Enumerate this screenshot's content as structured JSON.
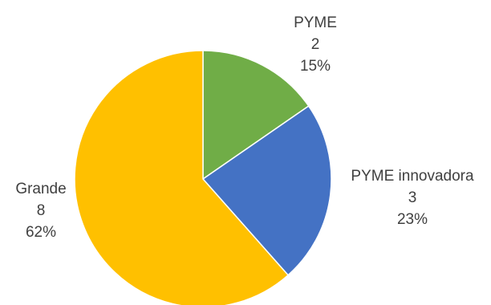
{
  "chart_data": {
    "type": "pie",
    "title": "",
    "slices": [
      {
        "label": "PYME",
        "value": 2,
        "percent": "15%",
        "color": "#70AD47"
      },
      {
        "label": "PYME innovadora",
        "value": 3,
        "percent": "23%",
        "color": "#4472C4"
      },
      {
        "label": "Grande",
        "value": 8,
        "percent": "62%",
        "color": "#FFC000"
      }
    ],
    "start_angle_deg": 0,
    "direction": "clockwise",
    "legend": "none"
  }
}
